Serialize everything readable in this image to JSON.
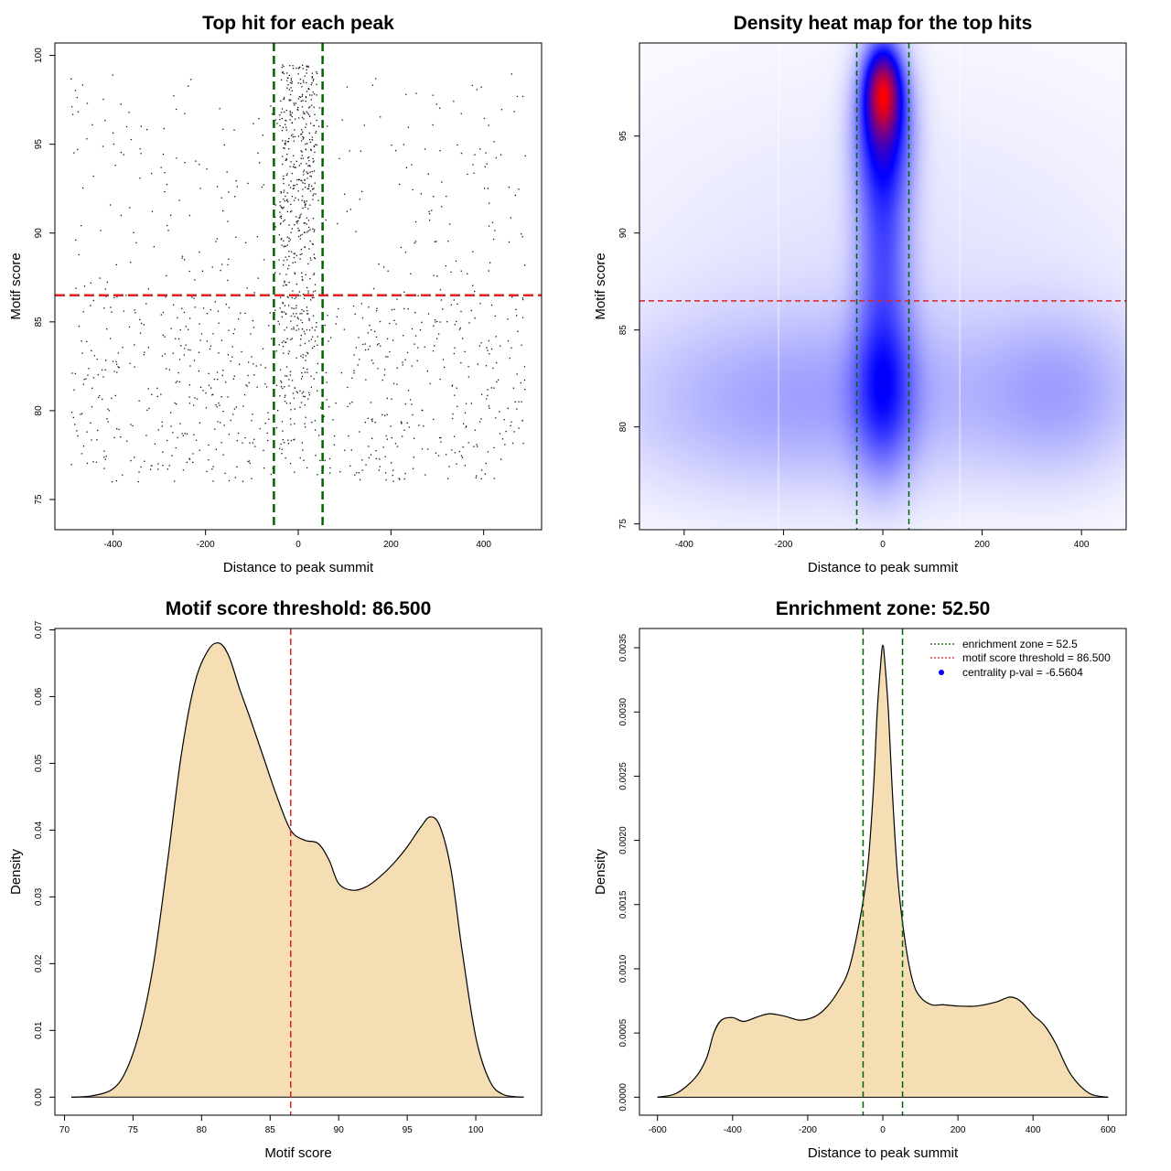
{
  "chart_data": [
    {
      "id": "scatter",
      "type": "scatter",
      "title": "Top hit for each peak",
      "xlabel": "Distance to peak summit",
      "ylabel": "Motif score",
      "xlim": [
        -525,
        525
      ],
      "ylim": [
        73.3,
        100.7
      ],
      "xticks": [
        -400,
        -200,
        0,
        200,
        400
      ],
      "yticks": [
        75,
        80,
        85,
        90,
        95,
        100
      ],
      "point_count": 1500,
      "point_distribution": {
        "central_fraction": 0.33,
        "central_x_range": [
          -40,
          40
        ],
        "central_y_range": [
          77.5,
          99.5
        ],
        "background_x_range": [
          -490,
          490
        ],
        "background_y_range": [
          76,
          99
        ],
        "background_low_fraction": 0.72,
        "background_low_y_range": [
          76,
          86.5
        ],
        "seed": 7
      },
      "vlines": [
        -52.5,
        52.5
      ],
      "hline": 86.5,
      "vline_color": "#006400",
      "hline_color": "#dd2222"
    },
    {
      "id": "heatmap",
      "type": "heatmap",
      "title": "Density heat map for the top hits",
      "xlabel": "Distance to peak summit",
      "ylabel": "Motif score",
      "xlim": [
        -490,
        490
      ],
      "ylim": [
        74.7,
        99.8
      ],
      "xticks": [
        -400,
        -200,
        0,
        200,
        400
      ],
      "yticks": [
        75,
        80,
        85,
        90,
        95
      ],
      "bins": [
        -210,
        155
      ],
      "vlines": [
        -52.5,
        52.5
      ],
      "hline": 86.5,
      "color_scale": [
        "#ffffff",
        "#0000ff",
        "#ff0000"
      ],
      "density_components": [
        {
          "x": 0,
          "y": 97.3,
          "sx": 22,
          "sy": 1.4,
          "w": 1.0
        },
        {
          "x": 0,
          "y": 95.5,
          "sx": 35,
          "sy": 2.5,
          "w": 0.58
        },
        {
          "x": 0,
          "y": 89.5,
          "sx": 35,
          "sy": 3.5,
          "w": 0.3
        },
        {
          "x": 0,
          "y": 82.0,
          "sx": 40,
          "sy": 2.8,
          "w": 0.4
        },
        {
          "x": -60,
          "y": 81.5,
          "sx": 260,
          "sy": 3.0,
          "w": 0.11
        },
        {
          "x": 360,
          "y": 81.8,
          "sx": 110,
          "sy": 2.8,
          "w": 0.12
        },
        {
          "x": -300,
          "y": 81.0,
          "sx": 200,
          "sy": 3.2,
          "w": 0.05
        },
        {
          "x": 0,
          "y": 88.0,
          "sx": 420,
          "sy": 7.0,
          "w": 0.035
        }
      ]
    },
    {
      "id": "score-density",
      "type": "area",
      "title": "Motif score threshold: 86.500",
      "xlabel": "Motif score",
      "ylabel": "Density",
      "xlim": [
        69.3,
        104.8
      ],
      "ylim": [
        -0.0027,
        0.0702
      ],
      "xticks": [
        70,
        75,
        80,
        85,
        90,
        95,
        100
      ],
      "yticks": [
        0.0,
        0.01,
        0.02,
        0.03,
        0.04,
        0.05,
        0.06,
        0.07
      ],
      "ytick_labels": [
        "0.00",
        "0.01",
        "0.02",
        "0.03",
        "0.04",
        "0.05",
        "0.06",
        "0.07"
      ],
      "x": [
        70.5,
        72,
        73.5,
        74.5,
        75.5,
        76.5,
        77.5,
        78.5,
        79.5,
        80.5,
        81.3,
        82,
        82.8,
        83.5,
        84.5,
        85.5,
        86.5,
        87.5,
        88.5,
        89.3,
        90,
        91,
        92,
        93,
        94,
        95,
        96,
        96.7,
        97.4,
        98.2,
        99,
        100,
        101,
        102,
        103.5
      ],
      "y": [
        0.0,
        0.0002,
        0.0012,
        0.004,
        0.01,
        0.02,
        0.035,
        0.051,
        0.062,
        0.067,
        0.068,
        0.066,
        0.061,
        0.057,
        0.051,
        0.045,
        0.04,
        0.0385,
        0.038,
        0.0355,
        0.032,
        0.031,
        0.0315,
        0.033,
        0.035,
        0.0375,
        0.0405,
        0.042,
        0.0405,
        0.034,
        0.022,
        0.009,
        0.0025,
        0.0004,
        0.0
      ],
      "vline": 86.5,
      "fill": "#f5deb3",
      "vline_color": "#dd2222"
    },
    {
      "id": "distance-density",
      "type": "area",
      "title": "Enrichment zone: 52.50",
      "xlabel": "Distance to peak summit",
      "ylabel": "Density",
      "xlim": [
        -648,
        648
      ],
      "ylim": [
        -0.00014,
        0.00365
      ],
      "xticks": [
        -600,
        -400,
        -200,
        0,
        200,
        400,
        600
      ],
      "yticks": [
        0.0,
        0.0005,
        0.001,
        0.0015,
        0.002,
        0.0025,
        0.003,
        0.0035
      ],
      "ytick_labels": [
        "0.0000",
        "0.0005",
        "0.0010",
        "0.0015",
        "0.0020",
        "0.0025",
        "0.0030",
        "0.0035"
      ],
      "x": [
        -600,
        -550,
        -500,
        -470,
        -450,
        -430,
        -400,
        -370,
        -330,
        -300,
        -260,
        -220,
        -180,
        -150,
        -120,
        -90,
        -60,
        -40,
        -25,
        -15,
        -5,
        0,
        5,
        15,
        25,
        40,
        60,
        80,
        100,
        130,
        160,
        200,
        250,
        300,
        340,
        370,
        400,
        430,
        460,
        500,
        550,
        600
      ],
      "y": [
        0.0,
        3e-05,
        0.00015,
        0.0003,
        0.0005,
        0.0006,
        0.00062,
        0.00059,
        0.00063,
        0.00065,
        0.00063,
        0.0006,
        0.00063,
        0.0007,
        0.00082,
        0.001,
        0.0014,
        0.0018,
        0.0024,
        0.003,
        0.0034,
        0.00352,
        0.0034,
        0.003,
        0.0024,
        0.0017,
        0.0012,
        0.0009,
        0.00078,
        0.00072,
        0.00072,
        0.00071,
        0.00071,
        0.00074,
        0.00078,
        0.00074,
        0.00064,
        0.00056,
        0.00042,
        0.00018,
        3e-05,
        0.0
      ],
      "vlines": [
        -52.5,
        52.5
      ],
      "fill": "#f5deb3",
      "vline_color": "#006400",
      "legend": [
        {
          "label": "enrichment zone = 52.5",
          "marker": "dotted-line",
          "color": "#006400"
        },
        {
          "label": "motif score threshold = 86.500",
          "marker": "dotted-line",
          "color": "#dd2222"
        },
        {
          "label": "centrality p-val = -6.5604",
          "marker": "dot",
          "color": "#0000ff"
        }
      ],
      "legend_position": "top-right"
    }
  ]
}
